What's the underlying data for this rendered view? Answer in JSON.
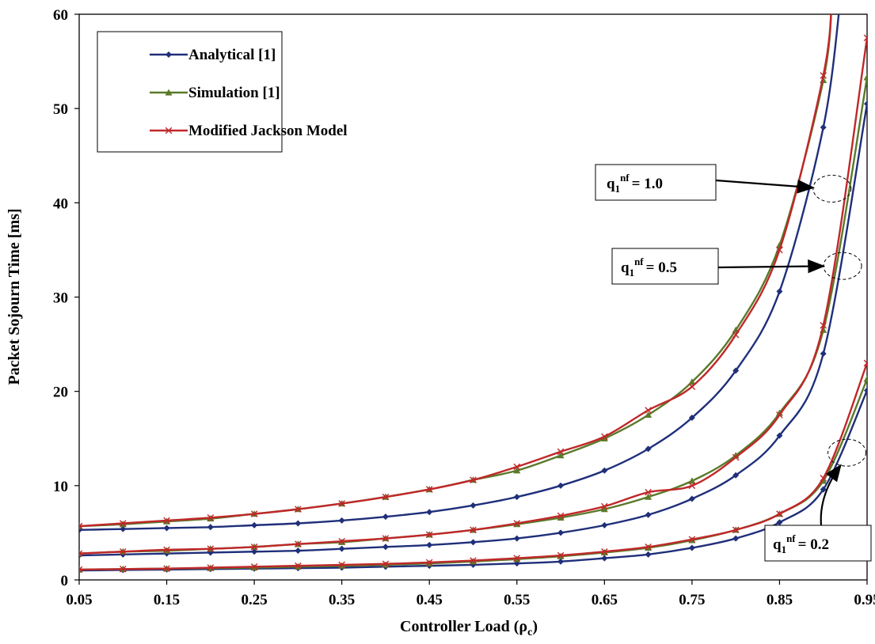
{
  "chart_data": {
    "type": "line",
    "xlabel": "Controller Load (ρ",
    "xlabel_sub": "c",
    "xlabel_close": ")",
    "ylabel": "Packet Sojourn Time [ms]",
    "xlim": [
      0.05,
      0.95
    ],
    "ylim": [
      0,
      60
    ],
    "x_ticks": [
      0.05,
      0.15,
      0.25,
      0.35,
      0.45,
      0.55,
      0.65,
      0.75,
      0.85,
      0.95
    ],
    "x_tick_labels": [
      "0.05",
      "0.15",
      "0.25",
      "0.35",
      "0.45",
      "0.55",
      "0.65",
      "0.75",
      "0.85",
      "0.95"
    ],
    "y_ticks": [
      0,
      10,
      20,
      30,
      40,
      50,
      60
    ],
    "y_tick_labels": [
      "0",
      "10",
      "20",
      "30",
      "40",
      "50",
      "60"
    ],
    "grid": false,
    "legend_position": "top-left",
    "x": [
      0.05,
      0.1,
      0.15,
      0.2,
      0.25,
      0.3,
      0.35,
      0.4,
      0.45,
      0.5,
      0.55,
      0.6,
      0.65,
      0.7,
      0.75,
      0.8,
      0.85,
      0.9,
      0.95
    ],
    "series": [
      {
        "name": "Analytical [1]",
        "group": "q=1.0",
        "color": "#1f2f7a",
        "marker": "diamond",
        "values": [
          5.3,
          5.4,
          5.5,
          5.6,
          5.8,
          6.0,
          6.3,
          6.7,
          7.2,
          7.9,
          8.8,
          10.0,
          11.6,
          13.9,
          17.2,
          22.2,
          30.6,
          48.0,
          null
        ],
        "tail": [
          [
            0.92,
            62
          ]
        ]
      },
      {
        "name": "Simulation [1]",
        "group": "q=1.0",
        "color": "#5a7a2a",
        "marker": "triangle",
        "values": [
          5.7,
          5.9,
          6.2,
          6.5,
          7.0,
          7.5,
          8.1,
          8.8,
          9.6,
          10.6,
          11.6,
          13.2,
          15.0,
          17.5,
          21.0,
          26.5,
          35.5,
          53.0,
          null
        ],
        "tail": [
          [
            0.91,
            62
          ]
        ]
      },
      {
        "name": "Modified Jackson Model",
        "group": "q=1.0",
        "color": "#c0282a",
        "marker": "x",
        "values": [
          5.7,
          6.0,
          6.3,
          6.6,
          7.0,
          7.5,
          8.1,
          8.8,
          9.6,
          10.6,
          12.0,
          13.6,
          15.2,
          18.0,
          20.5,
          26.0,
          35.0,
          53.5,
          null
        ],
        "tail": [
          [
            0.91,
            62
          ]
        ]
      },
      {
        "name": "Analytical [1]",
        "group": "q=0.5",
        "color": "#1f2f7a",
        "marker": "diamond",
        "values": [
          2.6,
          2.7,
          2.8,
          2.9,
          3.0,
          3.1,
          3.3,
          3.5,
          3.7,
          4.0,
          4.4,
          5.0,
          5.8,
          6.9,
          8.6,
          11.1,
          15.3,
          24.0,
          50.5
        ]
      },
      {
        "name": "Simulation [1]",
        "group": "q=0.5",
        "color": "#5a7a2a",
        "marker": "triangle",
        "values": [
          2.8,
          3.0,
          3.1,
          3.3,
          3.5,
          3.8,
          4.0,
          4.4,
          4.8,
          5.3,
          5.9,
          6.6,
          7.5,
          8.8,
          10.5,
          13.2,
          17.7,
          26.5,
          53.3
        ]
      },
      {
        "name": "Modified Jackson Model",
        "group": "q=0.5",
        "color": "#c0282a",
        "marker": "x",
        "values": [
          2.8,
          3.0,
          3.2,
          3.3,
          3.5,
          3.8,
          4.1,
          4.4,
          4.8,
          5.3,
          6.0,
          6.8,
          7.8,
          9.3,
          10.0,
          13.0,
          17.5,
          27.0,
          57.5
        ]
      },
      {
        "name": "Analytical [1]",
        "group": "q=0.2",
        "color": "#1f2f7a",
        "marker": "diamond",
        "values": [
          1.0,
          1.05,
          1.1,
          1.15,
          1.2,
          1.25,
          1.3,
          1.4,
          1.5,
          1.6,
          1.75,
          1.95,
          2.3,
          2.7,
          3.4,
          4.4,
          6.1,
          9.6,
          20.1
        ]
      },
      {
        "name": "Simulation [1]",
        "group": "q=0.2",
        "color": "#5a7a2a",
        "marker": "triangle",
        "values": [
          1.1,
          1.15,
          1.2,
          1.25,
          1.3,
          1.4,
          1.5,
          1.6,
          1.75,
          1.95,
          2.2,
          2.5,
          2.9,
          3.4,
          4.2,
          5.3,
          7.0,
          10.5,
          21.3
        ]
      },
      {
        "name": "Modified Jackson Model",
        "group": "q=0.2",
        "color": "#c0282a",
        "marker": "x",
        "values": [
          1.1,
          1.15,
          1.2,
          1.3,
          1.4,
          1.5,
          1.6,
          1.7,
          1.85,
          2.05,
          2.3,
          2.6,
          3.0,
          3.5,
          4.3,
          5.3,
          7.0,
          10.8,
          23.0
        ]
      }
    ],
    "legend": [
      {
        "label": "Analytical [1]",
        "color": "#1f2f7a",
        "marker": "diamond"
      },
      {
        "label": "Simulation [1]",
        "color": "#5a7a2a",
        "marker": "triangle"
      },
      {
        "label": "Modified Jackson Model",
        "color": "#c0282a",
        "marker": "x"
      }
    ],
    "annotations": [
      {
        "id": "q10",
        "prefix": "q",
        "sub": "1",
        "sup": "nf",
        "value": "= 1.0",
        "target": [
          0.91,
          41.5
        ]
      },
      {
        "id": "q05",
        "prefix": "q",
        "sub": "1",
        "sup": "nf",
        "value": "= 0.5",
        "target": [
          0.922,
          33.3
        ]
      },
      {
        "id": "q02",
        "prefix": "q",
        "sub": "1",
        "sup": "nf",
        "value": "= 0.2",
        "target": [
          0.927,
          13.5
        ]
      }
    ]
  }
}
